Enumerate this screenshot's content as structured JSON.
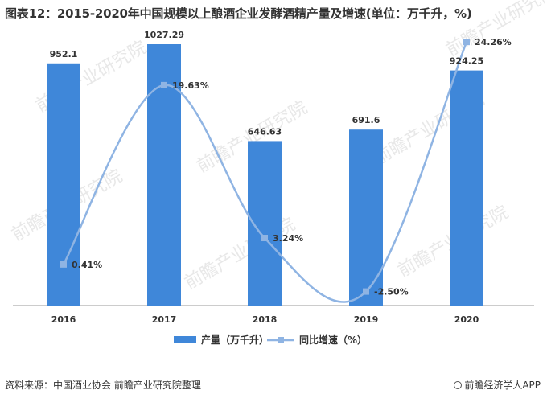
{
  "title": "图表12：2015-2020年中国规模以上酿酒企业发酵酒精产量及增速(单位：万千升，%)",
  "source": "资料来源：中国酒业协会 前瞻产业研究院整理",
  "brand": "前瞻经济学人APP",
  "watermark": "前瞻产业研究院",
  "colors": {
    "bar": "#3F87D9",
    "line": "#8FB4E3",
    "axis": "#999999",
    "text": "#333333"
  },
  "chart_data": {
    "type": "bar",
    "categories": [
      "2016",
      "2017",
      "2018",
      "2019",
      "2020"
    ],
    "series": [
      {
        "name": "产量（万千升）",
        "type": "bar",
        "values": [
          952.1,
          1027.29,
          646.63,
          691.6,
          924.25
        ],
        "labels": [
          "952.1",
          "1027.29",
          "646.63",
          "691.6",
          "924.25"
        ]
      },
      {
        "name": "同比增速（%）",
        "type": "line",
        "smooth": true,
        "values": [
          0.41,
          19.63,
          3.24,
          -2.5,
          24.26
        ],
        "labels": [
          "0.41%",
          "19.63%",
          "3.24%",
          "-2.50%",
          "24.26%"
        ]
      }
    ],
    "y_left": [
      0,
      1100
    ],
    "y_right": [
      -4,
      26
    ],
    "legend": "bottom"
  }
}
